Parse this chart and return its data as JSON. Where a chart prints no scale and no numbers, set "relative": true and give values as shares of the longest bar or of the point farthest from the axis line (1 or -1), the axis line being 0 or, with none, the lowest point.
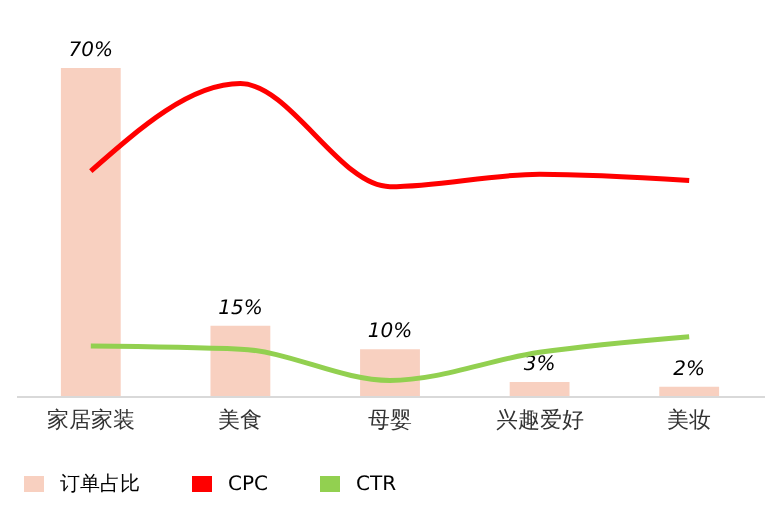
{
  "chart_data": [
    {
      "type": "bar",
      "categories": [
        "家居家装",
        "美食",
        "母婴",
        "兴趣爱好",
        "美妆"
      ],
      "legend": "bottom",
      "grid": false,
      "series": [
        {
          "name": "订单占比",
          "color": "#f8d0c0",
          "values": [
            70,
            15,
            10,
            3,
            2
          ],
          "value_labels": [
            "70%",
            "15%",
            "10%",
            "3%",
            "2%"
          ]
        }
      ]
    },
    {
      "type": "line",
      "categories": [
        "家居家装",
        "美食",
        "母婴",
        "兴趣爱好",
        "美妆"
      ],
      "relative": true,
      "legend": "bottom",
      "tick_labels": false,
      "series": [
        {
          "name": "CPC",
          "color": "#ff0000",
          "values": [
            0.72,
            1,
            0.67,
            0.71,
            0.69
          ]
        },
        {
          "name": "CTR",
          "color": "#92d050",
          "values": [
            0.16,
            0.15,
            0.05,
            0.14,
            0.19
          ]
        }
      ]
    }
  ]
}
